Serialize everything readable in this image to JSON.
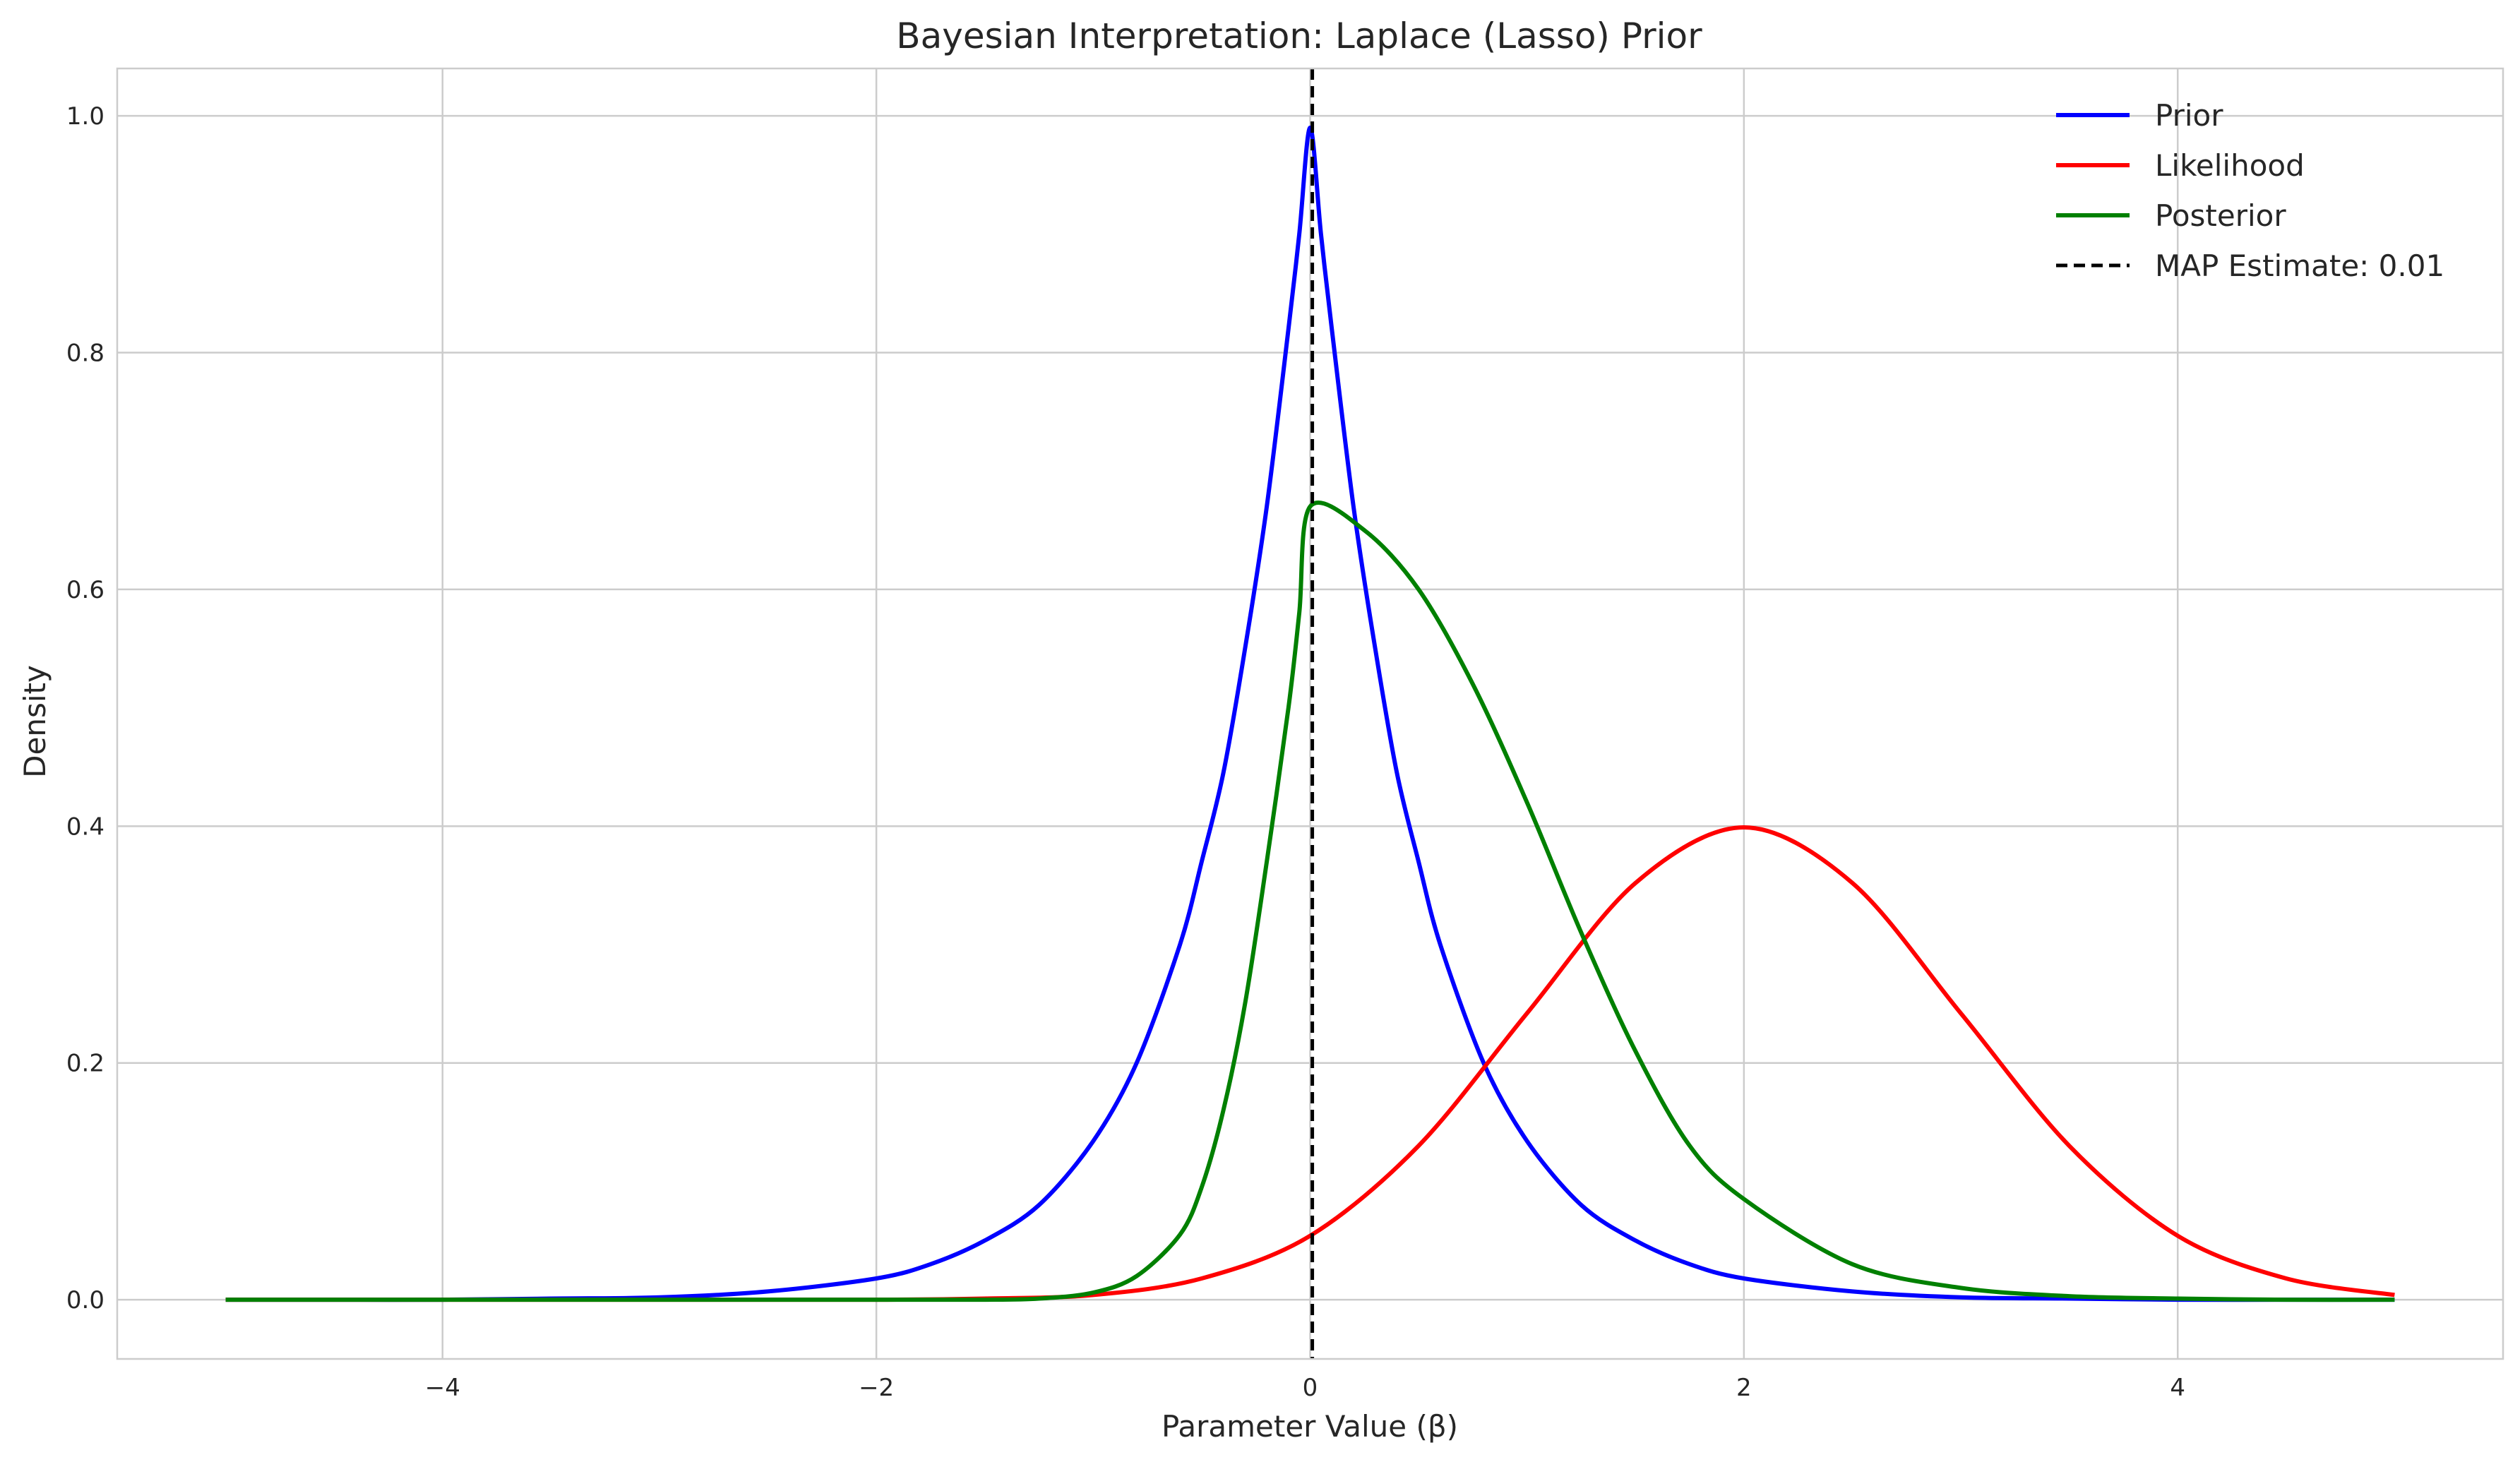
{
  "chart_data": {
    "type": "line",
    "title": "Bayesian Interpretation: Laplace (Lasso) Prior",
    "xlabel": "Parameter Value (β)",
    "ylabel": "Density",
    "xlim": [
      -5.5,
      5.5
    ],
    "ylim": [
      -0.05,
      1.04
    ],
    "xticks": [
      -4,
      -2,
      0,
      2,
      4
    ],
    "xtick_labels": [
      "−4",
      "−2",
      "0",
      "2",
      "4"
    ],
    "yticks": [
      0.0,
      0.2,
      0.4,
      0.6,
      0.8,
      1.0
    ],
    "ytick_labels": [
      "0.0",
      "0.2",
      "0.4",
      "0.6",
      "0.8",
      "1.0"
    ],
    "grid": true,
    "legend_position": "top-right",
    "series": [
      {
        "name": "Prior",
        "color": "#0000ff",
        "style": "solid",
        "x": [
          -5,
          -4.5,
          -4,
          -3.5,
          -3,
          -2.5,
          -2,
          -1.75,
          -1.5,
          -1.25,
          -1,
          -0.8,
          -0.6,
          -0.5,
          -0.4,
          -0.3,
          -0.2,
          -0.1,
          -0.05,
          0,
          0.05,
          0.1,
          0.2,
          0.3,
          0.4,
          0.5,
          0.6,
          0.8,
          1,
          1.25,
          1.5,
          1.75,
          2,
          2.5,
          3,
          3.5,
          4,
          4.5,
          5
        ],
        "y": [
          0.0,
          0.0,
          0.0,
          0.001,
          0.002,
          0.007,
          0.018,
          0.03,
          0.05,
          0.08,
          0.134,
          0.2,
          0.3,
          0.37,
          0.445,
          0.55,
          0.67,
          0.82,
          0.9,
          0.99,
          0.9,
          0.82,
          0.67,
          0.55,
          0.445,
          0.37,
          0.3,
          0.2,
          0.134,
          0.08,
          0.05,
          0.03,
          0.018,
          0.007,
          0.002,
          0.001,
          0.0,
          0.0,
          0.0
        ]
      },
      {
        "name": "Likelihood",
        "color": "#ff0000",
        "style": "solid",
        "x": [
          -5,
          -4,
          -3,
          -2,
          -1.5,
          -1,
          -0.5,
          0,
          0.5,
          1,
          1.5,
          2,
          2.5,
          3,
          3.5,
          4,
          4.5,
          5
        ],
        "y": [
          0.0,
          0.0,
          0.0,
          0.0,
          0.001,
          0.004,
          0.018,
          0.054,
          0.13,
          0.242,
          0.352,
          0.399,
          0.352,
          0.242,
          0.13,
          0.054,
          0.018,
          0.004
        ]
      },
      {
        "name": "Posterior",
        "color": "#008000",
        "style": "solid",
        "x": [
          -5,
          -3,
          -2,
          -1.5,
          -1.25,
          -1,
          -0.8,
          -0.6,
          -0.5,
          -0.4,
          -0.3,
          -0.2,
          -0.1,
          -0.05,
          0,
          0.25,
          0.5,
          0.75,
          1,
          1.25,
          1.5,
          1.75,
          2,
          2.5,
          3,
          3.5,
          4,
          4.5,
          5
        ],
        "y": [
          0.0,
          0.0,
          0.0,
          0.0,
          0.001,
          0.006,
          0.02,
          0.055,
          0.095,
          0.16,
          0.25,
          0.37,
          0.5,
          0.58,
          0.67,
          0.65,
          0.6,
          0.52,
          0.42,
          0.31,
          0.21,
          0.13,
          0.085,
          0.03,
          0.01,
          0.003,
          0.001,
          0.0,
          0.0
        ]
      },
      {
        "name": "MAP Estimate: 0.01",
        "color": "#000000",
        "style": "dashed",
        "type": "vline",
        "x_value": 0.01
      }
    ]
  }
}
